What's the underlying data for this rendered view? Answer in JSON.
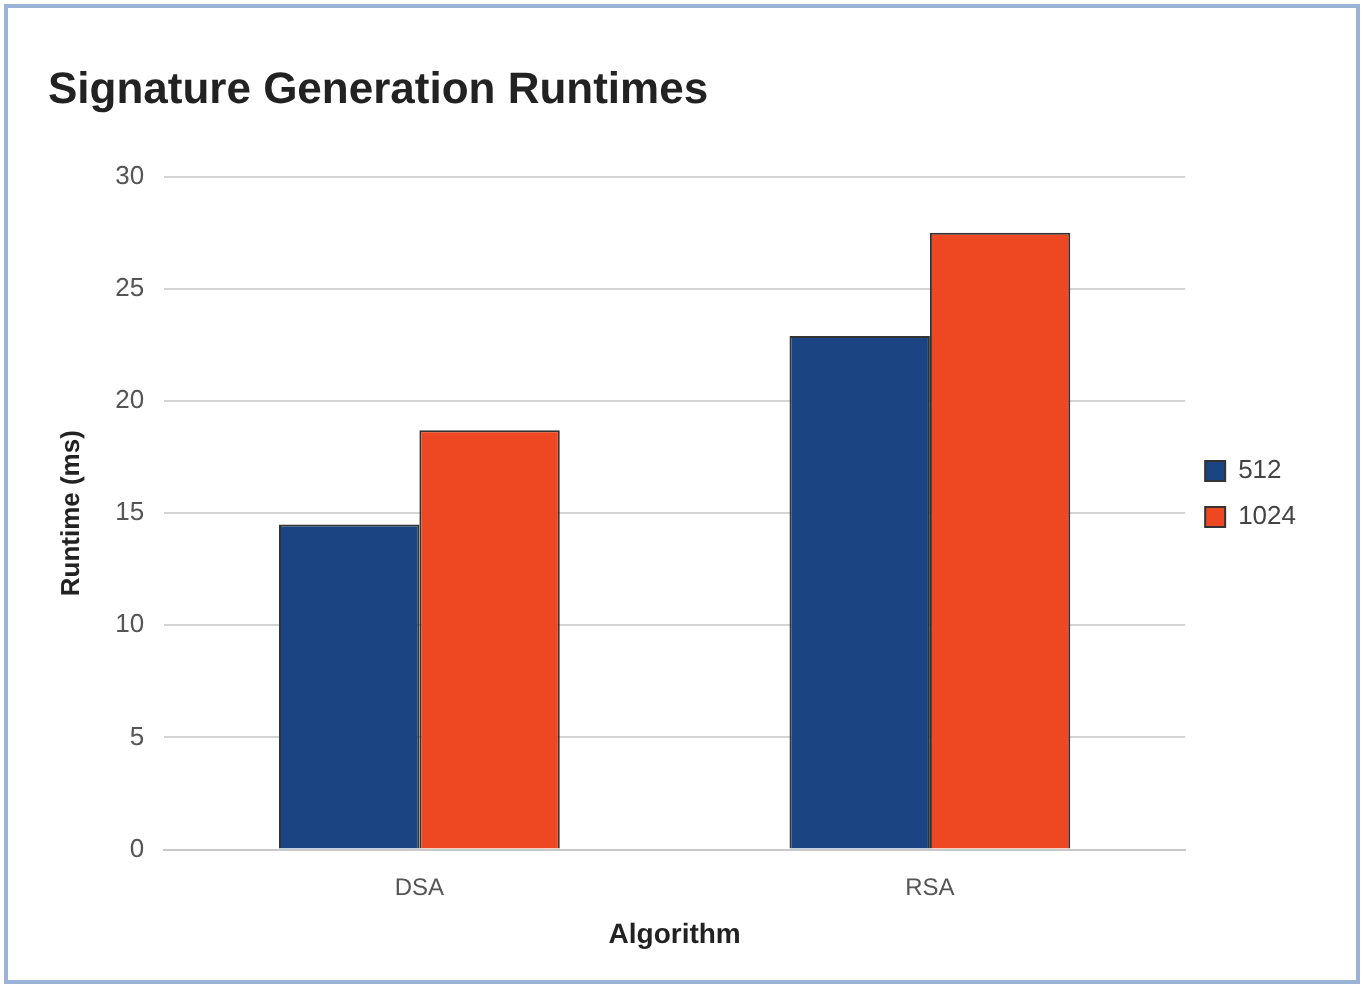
{
  "chart_data": {
    "type": "bar",
    "title": "Signature Generation Runtimes",
    "xlabel": "Algorithm",
    "ylabel": "Runtime (ms)",
    "categories": [
      "DSA",
      "RSA"
    ],
    "series": [
      {
        "name": "512",
        "color": "#1a4582",
        "values": [
          14.5,
          22.9
        ]
      },
      {
        "name": "1024",
        "color": "#ee4822",
        "values": [
          18.7,
          27.5
        ]
      }
    ],
    "ylim": [
      0,
      30
    ],
    "yticks": [
      0,
      5,
      10,
      15,
      20,
      25,
      30
    ],
    "grid": "y",
    "legend": "right"
  }
}
